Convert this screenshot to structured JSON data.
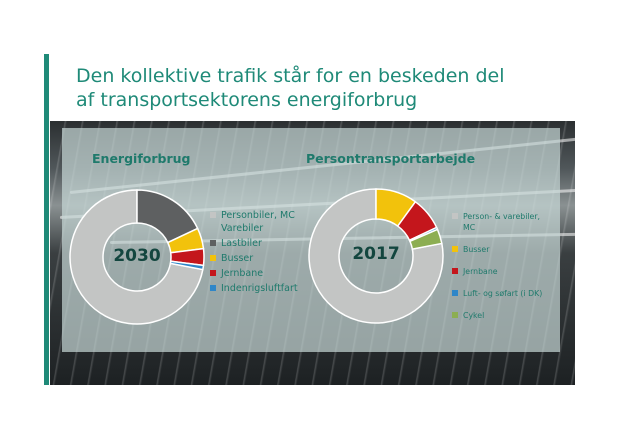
{
  "title": {
    "line1": "Den kollektive trafik står for en beskeden del",
    "line2": "af transportsektorens energiforbrug"
  },
  "colors": {
    "accent": "#1f8a78",
    "personbiler": "#c3c5c4",
    "lastbiler": "#5e6061",
    "busser": "#f2c20c",
    "jernbane": "#c4161c",
    "fly": "#2f86c8",
    "cykel": "#8cae52"
  },
  "chart_data": [
    {
      "type": "pie",
      "title": "Energiforbrug",
      "center_label": "2030",
      "labels": [
        "Personbiler, MC Varebiler",
        "Lastbiler",
        "Busser",
        "Jernbane",
        "Indenrigsluftfart"
      ],
      "values": [
        72,
        18,
        5,
        4,
        1
      ],
      "colors": [
        "#c3c5c4",
        "#5e6061",
        "#f2c20c",
        "#c4161c",
        "#2f86c8"
      ],
      "legend": "right"
    },
    {
      "type": "pie",
      "title": "Persontransportarbejde",
      "center_label": "2017",
      "labels": [
        "Person- & varebiler, MC",
        "Busser",
        "Jernbane",
        "Luft- og søfart (i DK)",
        "Cykel"
      ],
      "values": [
        78,
        10,
        8,
        0.5,
        3.5
      ],
      "colors": [
        "#c3c5c4",
        "#f2c20c",
        "#c4161c",
        "#2f86c8",
        "#8cae52"
      ],
      "legend": "right"
    }
  ]
}
